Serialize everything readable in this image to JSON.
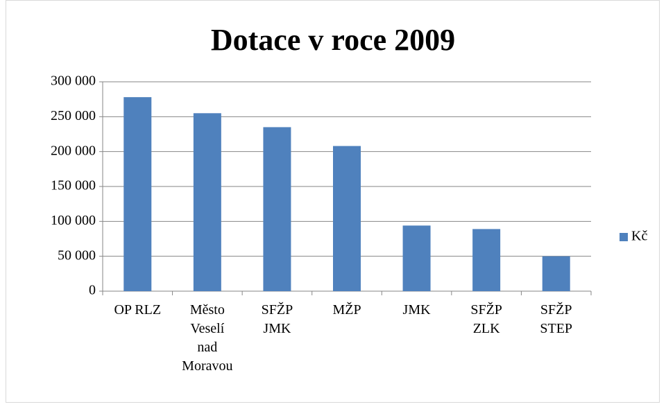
{
  "chart_data": {
    "type": "bar",
    "title": "Dotace v roce 2009",
    "categories": [
      "OP RLZ",
      "Město Veselí nad Moravou",
      "SFŽP JMK",
      "MŽP",
      "JMK",
      "SFŽP ZLK",
      "SFŽP STEP"
    ],
    "series": [
      {
        "name": "Kč",
        "color": "#4f81bd",
        "values": [
          278000,
          255000,
          235000,
          208000,
          94000,
          89000,
          50000
        ]
      }
    ],
    "ylim": [
      0,
      300000
    ],
    "yticks": [
      0,
      {
        "value": 50000,
        "label": "50 000"
      },
      {
        "value": 100000,
        "label": "100 000"
      },
      {
        "value": 150000,
        "label": "150 000"
      },
      {
        "value": 200000,
        "label": "200 000"
      },
      {
        "value": 250000,
        "label": "250 000"
      },
      {
        "value": 300000,
        "label": "300 000"
      }
    ],
    "grid": true,
    "legend": "right"
  }
}
